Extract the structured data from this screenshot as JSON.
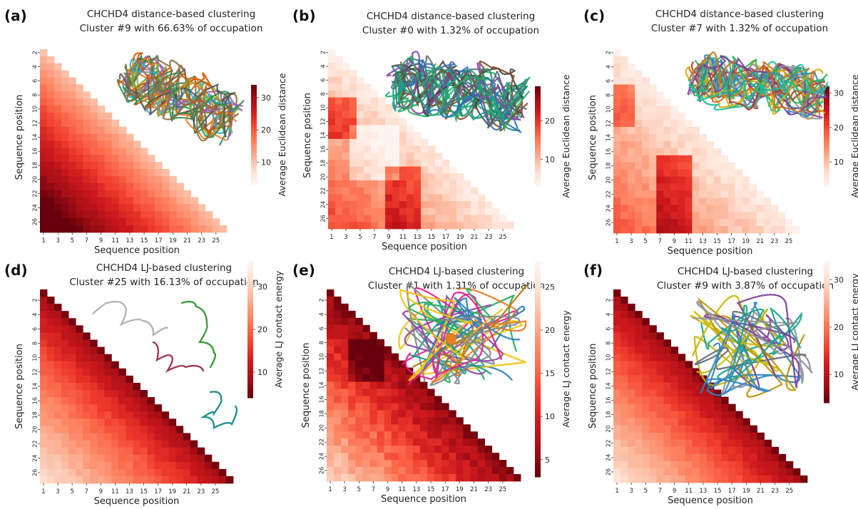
{
  "figure": {
    "panels": [
      {
        "letter": "(a)",
        "title1": "CHCHD4 distance-based clustering",
        "title2": "Cluster #9 with 66.63% of occupation"
      },
      {
        "letter": "(b)",
        "title1": "CHCHD4 distance-based clustering",
        "title2": "Cluster #0 with 1.32% of occupation"
      },
      {
        "letter": "(c)",
        "title1": "CHCHD4 distance-based clustering",
        "title2": "Cluster #7 with 1.32% of occupation"
      },
      {
        "letter": "(d)",
        "title1": "CHCHD4 LJ-based clustering",
        "title2": "Cluster #25 with 16.13% of occupation"
      },
      {
        "letter": "(e)",
        "title1": "CHCHD4 LJ-based clustering",
        "title2": "Cluster #1 with 1.31% of occupation"
      },
      {
        "letter": "(f)",
        "title1": "CHCHD4 LJ-based clustering",
        "title2": "Cluster #9 with 3.87% of occupation"
      }
    ]
  },
  "chart_data": [
    {
      "type": "heatmap",
      "panel": "(a)",
      "title": "CHCHD4 distance-based clustering\nCluster #9 with 66.63% of occupation",
      "xlabel": "Sequence position",
      "ylabel": "Sequence position",
      "x_ticks": [
        "1",
        "3",
        "5",
        "7",
        "9",
        "11",
        "13",
        "15",
        "17",
        "19",
        "21",
        "23",
        "25"
      ],
      "y_ticks": [
        "2",
        "4",
        "6",
        "8",
        "10",
        "12",
        "14",
        "16",
        "18",
        "20",
        "22",
        "24",
        "26"
      ],
      "colorbar": {
        "label": "Average Euclidean distance",
        "ticks": [
          10,
          20,
          30
        ],
        "range": [
          3,
          34
        ],
        "reversed": false
      },
      "triangle": "lower",
      "pattern": "distance",
      "seed": 11,
      "n": 27,
      "grid": true
    },
    {
      "type": "heatmap",
      "panel": "(b)",
      "title": "CHCHD4 distance-based clustering\nCluster #0 with 1.32% of occupation",
      "xlabel": "Sequence position",
      "ylabel": "Sequence position",
      "x_ticks": [
        "1",
        "3",
        "5",
        "7",
        "9",
        "11",
        "13",
        "15",
        "17",
        "19",
        "21",
        "23",
        "25"
      ],
      "y_ticks": [
        "2",
        "4",
        "6",
        "8",
        "10",
        "12",
        "14",
        "16",
        "18",
        "20",
        "22",
        "24",
        "26"
      ],
      "colorbar": {
        "label": "Average Euclidean distance",
        "ticks": [
          10,
          20
        ],
        "range": [
          3,
          29
        ],
        "reversed": false
      },
      "triangle": "lower",
      "pattern": "blocky",
      "seed": 23,
      "n": 27
    },
    {
      "type": "heatmap",
      "panel": "(c)",
      "title": "CHCHD4 distance-based clustering\nCluster #7 with 1.32% of occupation",
      "xlabel": "Sequence position",
      "ylabel": "Sequence position",
      "x_ticks": [
        "1",
        "3",
        "5",
        "7",
        "9",
        "11",
        "13",
        "15",
        "17",
        "19",
        "21",
        "23",
        "25"
      ],
      "y_ticks": [
        "2",
        "4",
        "6",
        "8",
        "10",
        "12",
        "14",
        "16",
        "18",
        "20",
        "22",
        "24",
        "26"
      ],
      "colorbar": {
        "label": "Average Euclidean distance",
        "ticks": [
          10,
          20,
          30
        ],
        "range": [
          3,
          32
        ],
        "reversed": false
      },
      "triangle": "lower",
      "pattern": "column9",
      "seed": 37,
      "n": 27
    },
    {
      "type": "heatmap",
      "panel": "(d)",
      "title": "CHCHD4 LJ-based clustering\nCluster #25 with 16.13% of occupation",
      "xlabel": "Sequence position",
      "ylabel": "Sequence position",
      "x_ticks": [
        "1",
        "3",
        "5",
        "7",
        "9",
        "11",
        "13",
        "15",
        "17",
        "19",
        "21",
        "23",
        "25"
      ],
      "y_ticks": [
        "2",
        "4",
        "6",
        "8",
        "10",
        "12",
        "14",
        "16",
        "18",
        "20",
        "22",
        "24",
        "26"
      ],
      "colorbar": {
        "label": "Average LJ contact energy",
        "ticks": [
          10,
          20,
          30
        ],
        "range": [
          4,
          36
        ],
        "reversed": true
      },
      "triangle": "lower",
      "pattern": "lj",
      "seed": 5,
      "n": 27
    },
    {
      "type": "heatmap",
      "panel": "(e)",
      "title": "CHCHD4 LJ-based clustering\nCluster #1 with 1.31% of occupation",
      "xlabel": "Sequence position",
      "ylabel": "Sequence position",
      "x_ticks": [
        "1",
        "3",
        "5",
        "7",
        "9",
        "11",
        "13",
        "15",
        "17",
        "19",
        "21",
        "23",
        "25"
      ],
      "y_ticks": [
        "2",
        "4",
        "6",
        "8",
        "10",
        "12",
        "14",
        "16",
        "18",
        "20",
        "22",
        "24",
        "26"
      ],
      "colorbar": {
        "label": "Average LJ contact energy",
        "ticks": [
          5,
          10,
          15,
          20,
          25
        ],
        "range": [
          3,
          28
        ],
        "reversed": true
      },
      "triangle": "lower",
      "pattern": "ljmid",
      "seed": 41,
      "n": 27
    },
    {
      "type": "heatmap",
      "panel": "(f)",
      "title": "CHCHD4 LJ-based clustering\nCluster #9 with 3.87% of occupation",
      "xlabel": "Sequence position",
      "ylabel": "Sequence position",
      "x_ticks": [
        "1",
        "3",
        "5",
        "7",
        "9",
        "11",
        "13",
        "15",
        "17",
        "19",
        "21",
        "23",
        "25"
      ],
      "y_ticks": [
        "2",
        "4",
        "6",
        "8",
        "10",
        "12",
        "14",
        "16",
        "18",
        "20",
        "22",
        "24",
        "26"
      ],
      "colorbar": {
        "label": "Average LJ contact energy",
        "ticks": [
          10,
          20,
          30
        ],
        "range": [
          4,
          34
        ],
        "reversed": true
      },
      "triangle": "lower",
      "pattern": "lj",
      "seed": 59,
      "n": 27
    }
  ]
}
